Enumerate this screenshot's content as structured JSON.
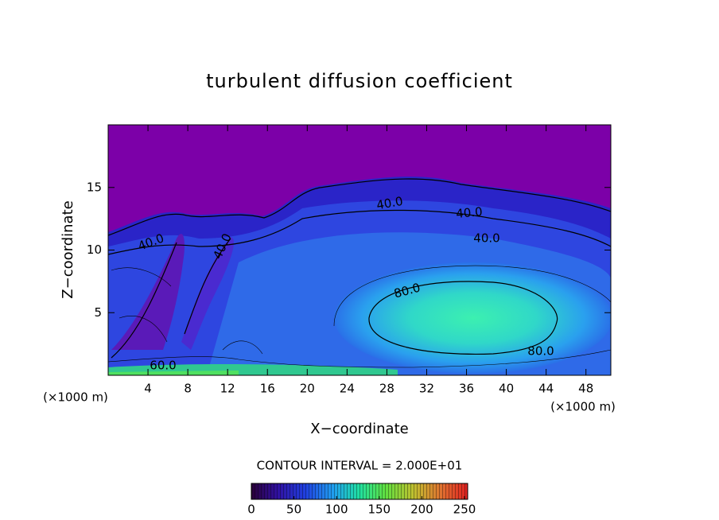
{
  "chart_data": {
    "type": "contour",
    "title": "turbulent diffusion coefficient",
    "xlabel": "X−coordinate",
    "ylabel": "Z−coordinate",
    "x_unit_left": "(×1000 m)",
    "x_unit_right": "(×1000 m)",
    "xlim": [
      0,
      50.5
    ],
    "xticks": [
      4,
      8,
      12,
      16,
      20,
      24,
      28,
      32,
      36,
      40,
      44,
      48
    ],
    "ylim": [
      0,
      20
    ],
    "yticks": [
      5,
      10,
      15
    ],
    "contour_labels": [
      "40.0",
      "40.0",
      "40.0",
      "40.0",
      "40.0",
      "80.0",
      "80.0",
      "60.0"
    ],
    "colorbar_title": "CONTOUR INTERVAL = 2.000E+01",
    "clim": [
      0,
      250
    ],
    "cticks": [
      0,
      50,
      100,
      150,
      200,
      250
    ]
  }
}
